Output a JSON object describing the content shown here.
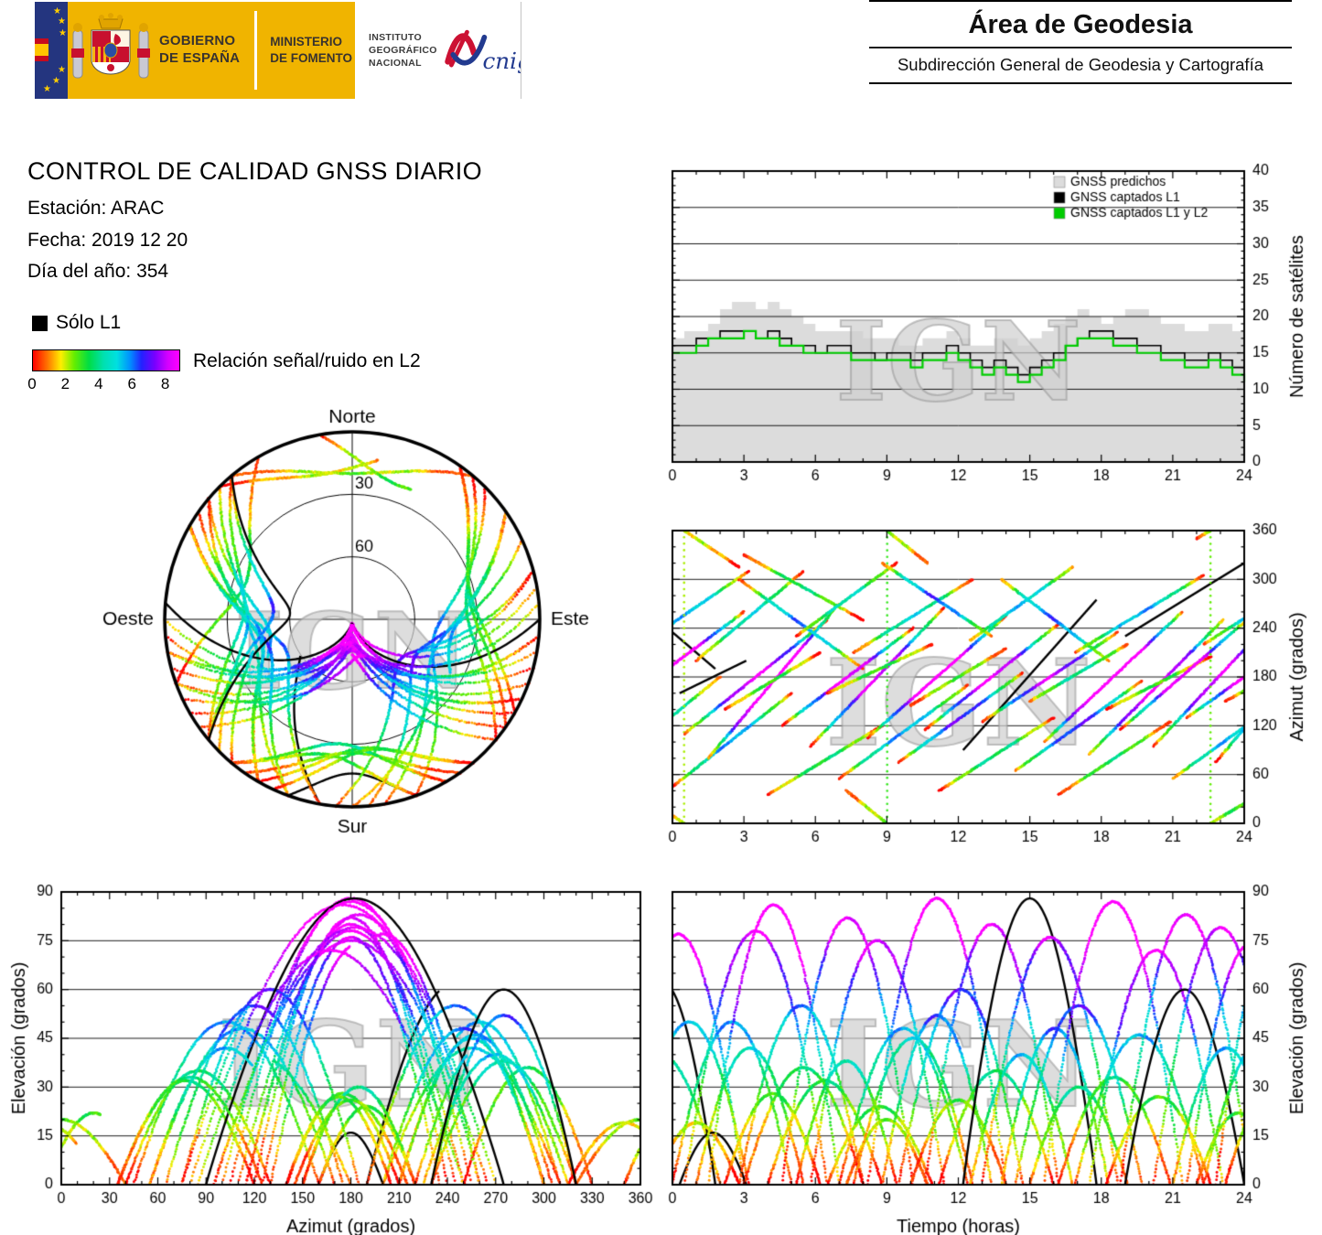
{
  "header": {
    "government": {
      "line1": "GOBIERNO",
      "line2": "DE ESPAÑA"
    },
    "ministry": {
      "line1": "MINISTERIO",
      "line2": "DE FOMENTO"
    },
    "institute": {
      "line1": "INSTITUTO",
      "line2": "GEOGRÁFICO",
      "line3": "NACIONAL"
    },
    "cnig": "cnig",
    "area": {
      "title": "Área de Geodesia",
      "subtitle": "Subdirección General de Geodesia y Cartografía"
    }
  },
  "report": {
    "title": "CONTROL DE CALIDAD GNSS DIARIO",
    "station": "Estación: ARAC",
    "date": "Fecha: 2019 12 20",
    "doy": "Día del año: 354"
  },
  "legend": {
    "l1_only": "Sólo L1",
    "snr_label": "Relación señal/ruido en L2",
    "snr_ticks": [
      0,
      2,
      4,
      6,
      8
    ],
    "snr_scale_max": 8.9,
    "colormap": [
      [
        0,
        "#ff0000"
      ],
      [
        0.9,
        "#ff7700"
      ],
      [
        1.7,
        "#ffee00"
      ],
      [
        2.5,
        "#66ee00"
      ],
      [
        3.4,
        "#00dd44"
      ],
      [
        4.3,
        "#00e0b0"
      ],
      [
        5.1,
        "#00e0e0"
      ],
      [
        5.9,
        "#0090ff"
      ],
      [
        6.6,
        "#2222ff"
      ],
      [
        7.4,
        "#7700ff"
      ],
      [
        8.2,
        "#d400ff"
      ],
      [
        8.9,
        "#ff00ff"
      ]
    ]
  },
  "watermark": "IGN",
  "render_seed": 13,
  "chart_data": [
    {
      "id": "satellite-count",
      "type": "area",
      "title": "",
      "xlabel": "",
      "ylabel": "Número de satélites",
      "xlim": [
        0,
        24
      ],
      "ylim": [
        0,
        40
      ],
      "xticks": [
        0,
        3,
        6,
        9,
        12,
        15,
        18,
        21,
        24
      ],
      "yticks": [
        0,
        5,
        10,
        15,
        20,
        25,
        30,
        35,
        40
      ],
      "x_step_hours": 0.5,
      "legend_position": "top-right",
      "series": [
        {
          "name": "GNSS predichos",
          "color": "#dcdcdc",
          "style": "filled-steps",
          "values": [
            17,
            18,
            18,
            19,
            21,
            22,
            22,
            21,
            22,
            21,
            20,
            19,
            18,
            18,
            18,
            18,
            17,
            17,
            17,
            16,
            16,
            17,
            17,
            18,
            17,
            16,
            16,
            17,
            17,
            16,
            17,
            18,
            19,
            20,
            21,
            20,
            19,
            20,
            21,
            21,
            20,
            19,
            19,
            18,
            18,
            19,
            19,
            18,
            18
          ]
        },
        {
          "name": "GNSS captados L1",
          "color": "#000000",
          "style": "steps",
          "values": [
            16,
            16,
            17,
            17,
            18,
            18,
            18,
            17,
            18,
            17,
            16,
            16,
            15,
            16,
            16,
            15,
            15,
            14,
            15,
            15,
            14,
            15,
            15,
            16,
            15,
            14,
            13,
            14,
            13,
            12,
            13,
            14,
            15,
            16,
            17,
            18,
            18,
            17,
            17,
            16,
            16,
            15,
            15,
            14,
            14,
            15,
            14,
            13,
            12
          ]
        },
        {
          "name": "GNSS captados L1 y L2",
          "color": "#00cc00",
          "style": "steps",
          "values": [
            15,
            15,
            16,
            17,
            17,
            17,
            18,
            17,
            17,
            16,
            16,
            15,
            15,
            15,
            15,
            14,
            14,
            14,
            14,
            14,
            13,
            14,
            14,
            15,
            14,
            13,
            12,
            13,
            12,
            11,
            12,
            13,
            14,
            16,
            17,
            17,
            17,
            16,
            16,
            15,
            15,
            14,
            14,
            13,
            13,
            14,
            13,
            12,
            11
          ]
        }
      ]
    },
    {
      "id": "azimuth-vs-time",
      "type": "scatter",
      "xlabel": "",
      "ylabel": "Azimut (grados)",
      "xlim": [
        0,
        24
      ],
      "ylim": [
        0,
        360
      ],
      "xticks": [
        0,
        3,
        6,
        9,
        12,
        15,
        18,
        21,
        24
      ],
      "yticks": [
        0,
        60,
        120,
        180,
        240,
        300,
        360
      ],
      "series_source": "satellite_passes",
      "x_field": "time_h",
      "y_field": "azimuth_deg",
      "color_field": "snr_l2"
    },
    {
      "id": "skyplot",
      "type": "polar-tracks",
      "compass": {
        "n": "Norte",
        "s": "Sur",
        "e": "Este",
        "w": "Oeste"
      },
      "elevation_rings_deg": [
        30,
        60
      ],
      "ring_labels": [
        "30",
        "60"
      ],
      "series_source": "satellite_passes"
    },
    {
      "id": "elevation-vs-azimuth",
      "type": "scatter",
      "xlabel": "Azimut (grados)",
      "ylabel": "Elevación (grados)",
      "xlim": [
        0,
        360
      ],
      "ylim": [
        0,
        90
      ],
      "xticks": [
        0,
        30,
        60,
        90,
        120,
        150,
        180,
        210,
        240,
        270,
        300,
        330,
        360
      ],
      "yticks": [
        0,
        15,
        30,
        45,
        60,
        75,
        90
      ],
      "series_source": "satellite_passes",
      "x_field": "azimuth_deg",
      "y_field": "elevation_deg",
      "color_field": "snr_l2"
    },
    {
      "id": "elevation-vs-time",
      "type": "scatter",
      "xlabel": "Tiempo (horas)",
      "ylabel": "Elevación (grados)",
      "xlim": [
        0,
        24
      ],
      "ylim": [
        0,
        90
      ],
      "xticks": [
        0,
        3,
        6,
        9,
        12,
        15,
        18,
        21,
        24
      ],
      "yticks": [
        0,
        15,
        30,
        45,
        60,
        75,
        90
      ],
      "series_source": "satellite_passes",
      "x_field": "time_h",
      "y_field": "elevation_deg",
      "color_field": "snr_l2"
    }
  ],
  "satellite_passes": {
    "format": [
      "start_hour",
      "duration_hours",
      "azimuth_start_deg",
      "azimuth_delta_deg",
      "peak_elevation_deg",
      "l1_only"
    ],
    "passes": [
      [
        -3.0,
        5.0,
        60,
        120,
        40,
        0
      ],
      [
        -2.6,
        4.4,
        300,
        -110,
        62,
        1
      ],
      [
        -2.5,
        5.5,
        140,
        120,
        77,
        0
      ],
      [
        -1.8,
        5.0,
        210,
        100,
        50,
        0
      ],
      [
        -0.8,
        3.6,
        25,
        -70,
        19,
        0
      ],
      [
        0.0,
        5.0,
        45,
        115,
        50,
        0
      ],
      [
        0.3,
        2.8,
        160,
        40,
        16,
        1
      ],
      [
        0.5,
        6.0,
        110,
        140,
        78,
        0
      ],
      [
        1.0,
        4.5,
        200,
        110,
        42,
        0
      ],
      [
        1.5,
        5.5,
        80,
        190,
        86,
        0
      ],
      [
        2.2,
        4.0,
        140,
        70,
        28,
        0
      ],
      [
        2.8,
        5.2,
        300,
        -110,
        55,
        0
      ],
      [
        3.0,
        5.0,
        330,
        -80,
        36,
        0
      ],
      [
        4.0,
        4.8,
        35,
        85,
        32,
        0
      ],
      [
        4.6,
        5.5,
        120,
        120,
        82,
        0
      ],
      [
        5.2,
        4.2,
        230,
        90,
        38,
        0
      ],
      [
        5.8,
        5.6,
        95,
        170,
        75,
        0
      ],
      [
        6.5,
        4.4,
        160,
        60,
        24,
        0
      ],
      [
        7.0,
        5.4,
        55,
        115,
        48,
        0
      ],
      [
        7.3,
        3.4,
        40,
        -80,
        20,
        0
      ],
      [
        7.6,
        5.0,
        210,
        90,
        45,
        0
      ],
      [
        8.2,
        5.8,
        105,
        150,
        88,
        0
      ],
      [
        8.8,
        4.6,
        320,
        -90,
        52,
        0
      ],
      [
        9.5,
        5.2,
        75,
        110,
        60,
        0
      ],
      [
        10.0,
        4.0,
        145,
        70,
        26,
        0
      ],
      [
        10.6,
        5.6,
        115,
        130,
        80,
        0
      ],
      [
        11.2,
        4.8,
        40,
        90,
        35,
        0
      ],
      [
        12.2,
        5.6,
        90,
        185,
        88,
        1
      ],
      [
        12.5,
        4.3,
        225,
        90,
        40,
        0
      ],
      [
        13.0,
        5.7,
        125,
        110,
        76,
        0
      ],
      [
        13.8,
        4.5,
        300,
        -100,
        48,
        0
      ],
      [
        14.4,
        5.3,
        65,
        110,
        55,
        0
      ],
      [
        15.0,
        4.1,
        150,
        70,
        30,
        0
      ],
      [
        15.6,
        5.8,
        100,
        160,
        87,
        0
      ],
      [
        16.2,
        4.7,
        35,
        90,
        33,
        0
      ],
      [
        16.9,
        5.4,
        210,
        95,
        46,
        0
      ],
      [
        17.5,
        5.6,
        85,
        165,
        72,
        0
      ],
      [
        18.2,
        4.4,
        140,
        65,
        27,
        0
      ],
      [
        18.8,
        5.5,
        115,
        140,
        83,
        0
      ],
      [
        19.0,
        5.0,
        230,
        90,
        60,
        1
      ],
      [
        20.2,
        5.6,
        95,
        175,
        79,
        0
      ],
      [
        21.0,
        4.5,
        55,
        95,
        42,
        0
      ],
      [
        21.6,
        5.3,
        130,
        110,
        74,
        0
      ],
      [
        22.0,
        3.5,
        350,
        60,
        22,
        0
      ],
      [
        22.3,
        4.8,
        220,
        90,
        44,
        0
      ],
      [
        22.8,
        5.5,
        75,
        190,
        85,
        0
      ],
      [
        23.2,
        4.0,
        150,
        65,
        29,
        0
      ]
    ]
  }
}
